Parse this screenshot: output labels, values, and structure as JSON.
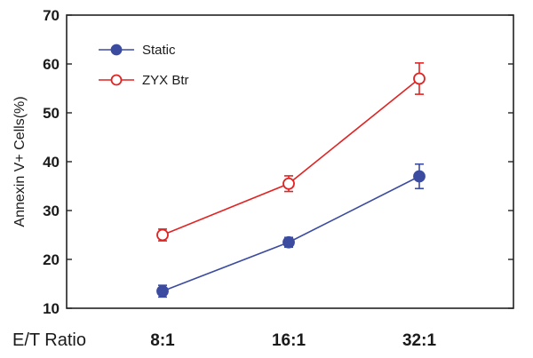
{
  "chart_data": {
    "type": "line",
    "categories": [
      "8:1",
      "16:1",
      "32:1"
    ],
    "xlabel": "E/T Ratio",
    "ylabel": "Annexin V+ Cells(%)",
    "ylim": [
      10,
      70
    ],
    "yticks": [
      10,
      20,
      30,
      40,
      50,
      60,
      70
    ],
    "grid": false,
    "legend_position": "top-left",
    "series": [
      {
        "name": "Static",
        "values": [
          13.5,
          23.5,
          37
        ],
        "errors": [
          1.2,
          1.0,
          2.5
        ],
        "color": "#3b4ba0",
        "marker": "filled-circle"
      },
      {
        "name": "ZYX Btr",
        "values": [
          25,
          35.5,
          57
        ],
        "errors": [
          1.2,
          1.6,
          3.2
        ],
        "color": "#e02424",
        "marker": "open-circle"
      }
    ]
  }
}
